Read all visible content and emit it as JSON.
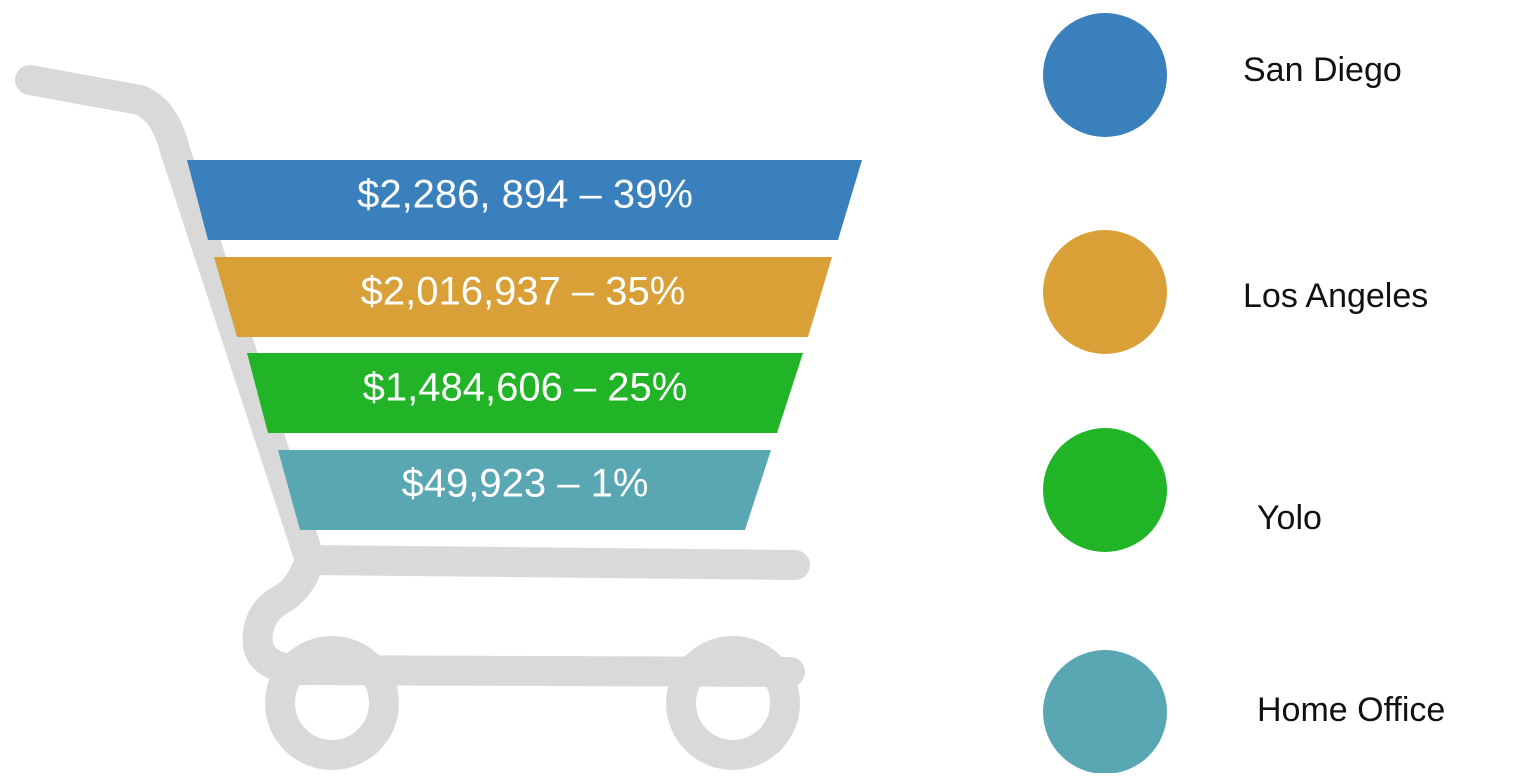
{
  "segments": [
    {
      "label": "$2,286, 894 – 39%"
    },
    {
      "label": "$2,016,937 – 35%"
    },
    {
      "label": "$1,484,606 – 25%"
    },
    {
      "label": "$49,923 – 1%"
    }
  ],
  "legend": [
    {
      "label": "San Diego"
    },
    {
      "label": "Los Angeles"
    },
    {
      "label": "Yolo"
    },
    {
      "label": "Home Office"
    }
  ]
}
